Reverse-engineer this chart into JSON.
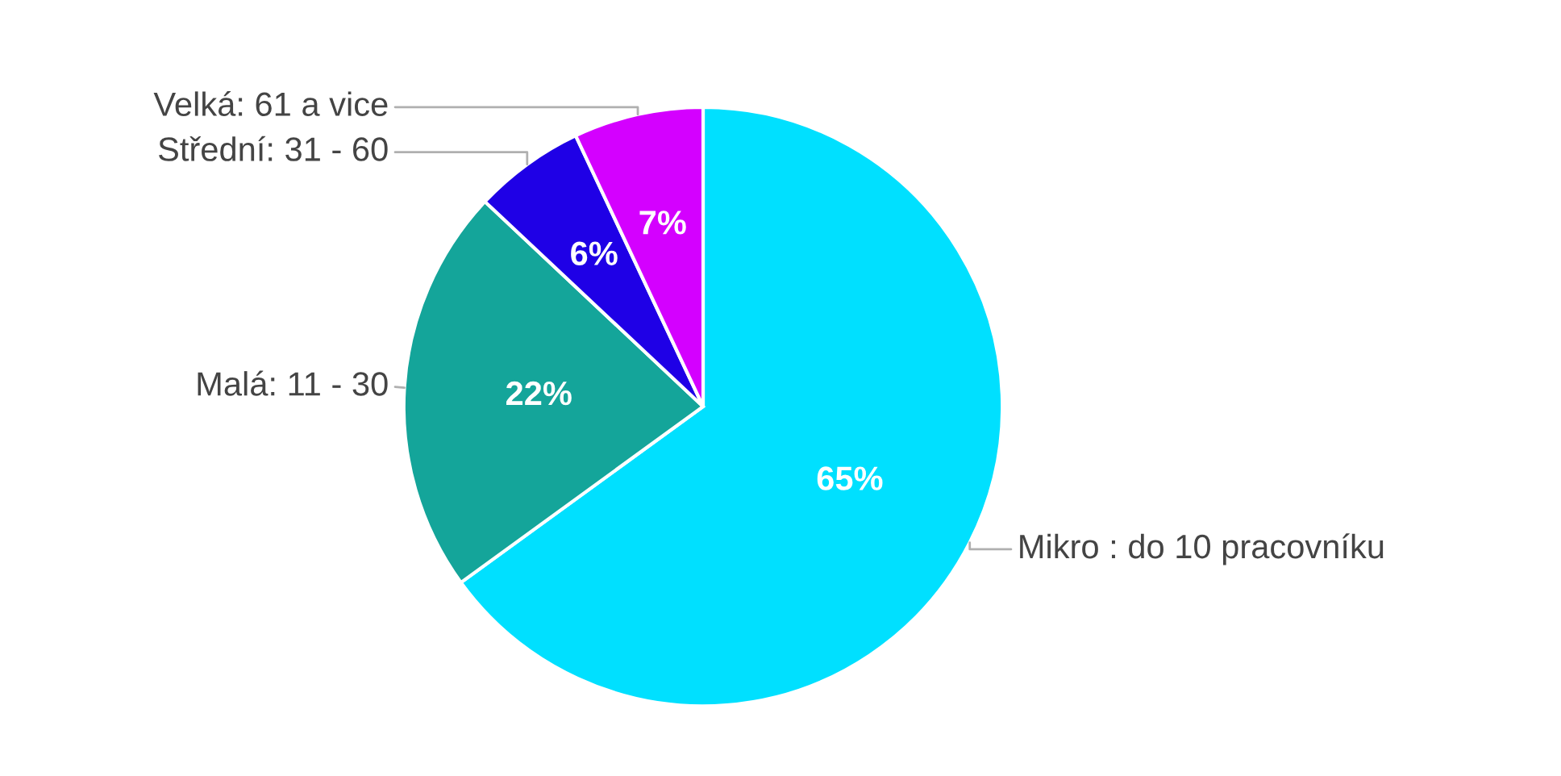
{
  "chart_data": {
    "type": "pie",
    "categories": [
      "Mikro : do 10 pracovníku",
      "Malá: 11 - 30",
      "Střední: 31 - 60",
      "Velká: 61 a vice"
    ],
    "values": [
      65,
      22,
      6,
      7
    ],
    "value_labels": [
      "65%",
      "22%",
      "6%",
      "7%"
    ],
    "colors": [
      "#00e0ff",
      "#14a59a",
      "#1f00e6",
      "#d400ff"
    ],
    "legend": false
  }
}
